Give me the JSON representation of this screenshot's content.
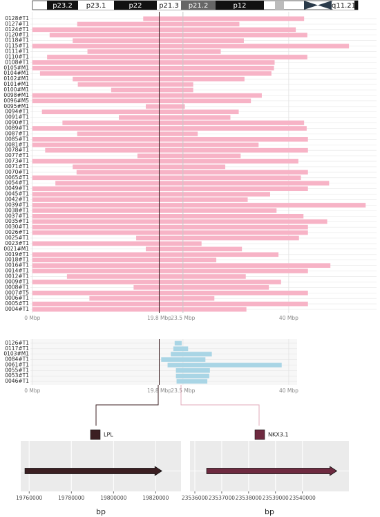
{
  "ideogram": {
    "bands": [
      "p23.2",
      "p23.1",
      "p22",
      "p21.3",
      "p21.2",
      "p12",
      "q11.21"
    ]
  },
  "chart_data": [
    {
      "type": "rangebar",
      "categories": [
        "0128#T1",
        "0127#T1",
        "0124#T1",
        "0120#T1",
        "0118#T1",
        "0115#T1",
        "0111#T1",
        "0110#T1",
        "0108#T1",
        "0105#M1",
        "0104#M1",
        "0102#M1",
        "0101#M1",
        "0100#M1",
        "0098#M1",
        "0096#M5",
        "0095#M1",
        "0094#T1",
        "0091#T1",
        "0090#T1",
        "0089#T1",
        "0087#T1",
        "0085#T1",
        "0081#T1",
        "0078#T1",
        "0077#T1",
        "0073#T1",
        "0071#T1",
        "0070#T1",
        "0065#T1",
        "0054#T1",
        "0049#T1",
        "0045#T1",
        "0042#T1",
        "0039#T1",
        "0038#T1",
        "0037#T1",
        "0035#T1",
        "0030#T1",
        "0026#T1",
        "0025#T1",
        "0023#T1",
        "0021#M1",
        "0019#T1",
        "0018#T1",
        "0016#T1",
        "0014#T1",
        "0012#T1",
        "0009#T1",
        "0008#T1",
        "0007#T5",
        "0006#T1",
        "0005#T1",
        "0004#T1"
      ],
      "series": [
        {
          "color": "#f7b3c6",
          "start": [
            17.3,
            7.0,
            0,
            2.7,
            6.3,
            0,
            8.6,
            2.3,
            0,
            0,
            1.2,
            6.3,
            7.1,
            12.3,
            0,
            0,
            17.7,
            1.5,
            13.5,
            4.7,
            0,
            7.0,
            0,
            0,
            2.0,
            16.4,
            0,
            6.3,
            6.9,
            0,
            3.6,
            0,
            0,
            0,
            0,
            0,
            0,
            0,
            0,
            0,
            16.2,
            0,
            17.7,
            0,
            0,
            0,
            0,
            5.4,
            0,
            15.8,
            0,
            8.9,
            0,
            0
          ],
          "end": [
            42.4,
            32.3,
            41.1,
            42.9,
            33.0,
            49.4,
            29.4,
            42.9,
            37.8,
            37.7,
            37.3,
            33.1,
            25.1,
            25.1,
            35.8,
            34.1,
            23.8,
            32.2,
            30.9,
            42.4,
            42.8,
            25.8,
            43.0,
            35.3,
            43.0,
            32.5,
            41.5,
            30.1,
            43.0,
            41.9,
            46.3,
            43.0,
            37.1,
            33.6,
            52.0,
            38.1,
            42.3,
            46.0,
            43.0,
            43.0,
            41.6,
            26.4,
            32.7,
            38.4,
            28.7,
            46.5,
            43.0,
            33.3,
            38.8,
            36.9,
            43.0,
            28.4,
            43.0,
            33.4
          ]
        }
      ],
      "xlim": [
        -0.3,
        53.7
      ],
      "xticks": [
        {
          "value": 0,
          "label": "0 Mbp"
        },
        {
          "value": 19.8,
          "label": "19.8 Mbp"
        },
        {
          "value": 23.5,
          "label": "23.5 Mbp"
        },
        {
          "value": 40,
          "label": "40 Mbp"
        }
      ],
      "markers": [
        {
          "value": 19.8,
          "color": "#3b1f22"
        },
        {
          "value": 23.5,
          "color": "#c8c8c8"
        }
      ]
    },
    {
      "type": "rangebar",
      "categories": [
        "0126#T1",
        "0117#T1",
        "0103#M1",
        "0084#T1",
        "0061#T1",
        "0055#T1",
        "0053#T1",
        "0046#T1"
      ],
      "series": [
        {
          "color": "#a9d5e5",
          "start": [
            22.2,
            22.0,
            21.6,
            20.1,
            21.1,
            22.4,
            22.4,
            22.5
          ],
          "end": [
            23.3,
            24.3,
            28.0,
            27.0,
            38.9,
            27.7,
            27.6,
            27.3
          ]
        }
      ],
      "xlim": [
        -0.3,
        41.3
      ],
      "xticks": [
        {
          "value": 0,
          "label": "0 Mbp"
        },
        {
          "value": 19.8,
          "label": "19.8 Mbp"
        },
        {
          "value": 23.5,
          "label": "23.5 Mbp"
        },
        {
          "value": 40,
          "label": "40 Mbp"
        }
      ],
      "markers": [
        {
          "value": 19.8,
          "color": "#3b1f22"
        }
      ]
    },
    {
      "type": "gene",
      "xlabel": "bp",
      "series": [
        {
          "name": "LPL",
          "color": "#3b1f22",
          "start": 19758000,
          "end": 19822900
        }
      ],
      "xlim": [
        19756000,
        19832000
      ],
      "xticks": [
        19760000,
        19780000,
        19800000,
        19820000
      ]
    },
    {
      "type": "gene",
      "xlabel": "bp",
      "series": [
        {
          "name": "NKX3.1",
          "color": "#6e2a40",
          "start": 23536440,
          "end": 23541280
        }
      ],
      "xlim": [
        23535820,
        23541730
      ],
      "xticks": [
        23536000,
        23537000,
        23538000,
        23539000,
        23540000
      ]
    }
  ]
}
